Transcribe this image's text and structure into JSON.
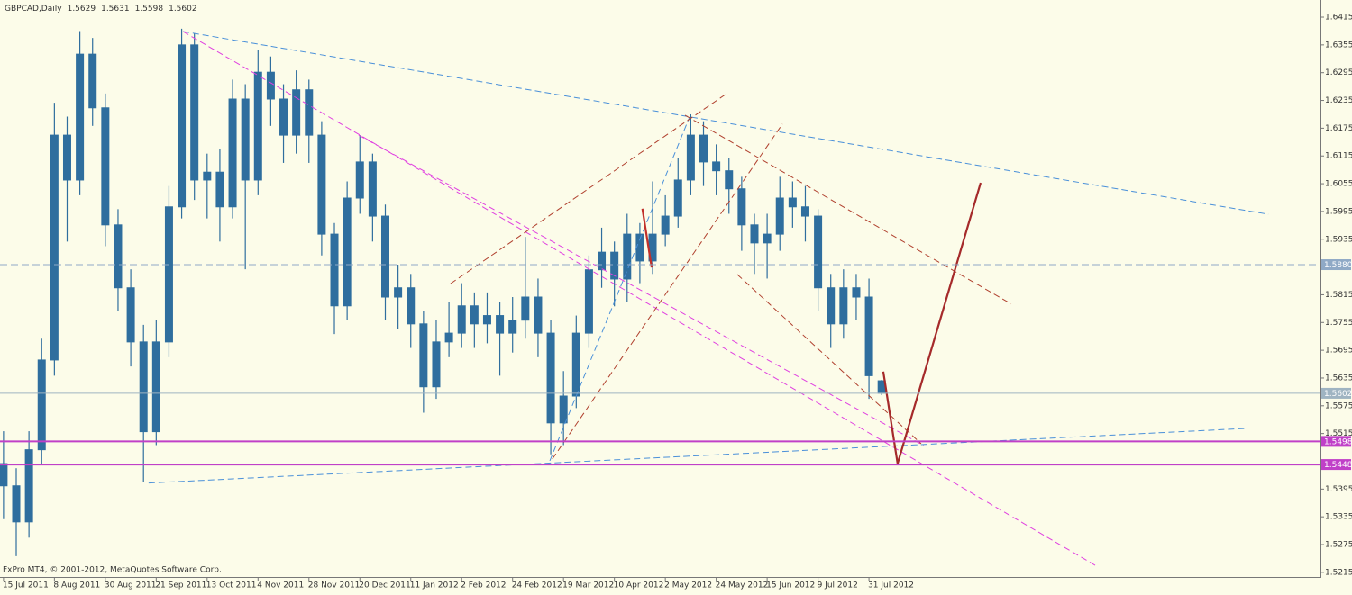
{
  "chart_data": {
    "type": "candlestick",
    "title": "GBPCAD,Daily",
    "footer": "FxPro MT4, © 2001-2012, MetaQuotes Software Corp.",
    "series": [
      {
        "color": "#2f6e9e",
        "x": [
          0,
          4,
          8,
          12,
          16,
          20,
          24,
          28,
          32,
          36,
          40,
          44,
          48,
          52,
          56,
          60,
          64,
          68,
          72,
          76,
          80,
          84,
          88,
          92,
          96,
          100,
          104,
          108,
          112,
          116,
          120,
          124,
          128,
          132,
          136,
          140,
          144,
          148,
          152,
          156,
          160,
          164,
          168,
          172,
          176,
          180,
          184,
          188,
          192,
          196,
          200,
          204,
          208,
          212,
          216,
          220,
          224,
          228,
          232,
          236,
          240,
          244,
          248,
          252,
          256,
          260,
          264,
          268,
          272,
          276
        ],
        "open": [
          1.545,
          1.5402,
          1.5324,
          1.548,
          1.5674,
          1.616,
          1.6063,
          1.6335,
          1.6219,
          1.5966,
          1.583,
          1.5713,
          1.5519,
          1.5713,
          1.6005,
          1.6355,
          1.6063,
          1.608,
          1.6005,
          1.6238,
          1.6063,
          1.6296,
          1.6238,
          1.616,
          1.6258,
          1.616,
          1.5946,
          1.5791,
          1.6024,
          1.6102,
          1.5985,
          1.581,
          1.583,
          1.5752,
          1.5616,
          1.5713,
          1.5732,
          1.5791,
          1.5752,
          1.577,
          1.5732,
          1.576,
          1.581,
          1.5732,
          1.5538,
          1.5596,
          1.5732,
          1.5869,
          1.5907,
          1.5849,
          1.5946,
          1.5888,
          1.5946,
          1.5985,
          1.6063,
          1.616,
          1.6102,
          1.6083,
          1.6044,
          1.5966,
          1.5927,
          1.5946,
          1.6024,
          1.6005,
          1.5985,
          1.583,
          1.5752,
          1.583,
          1.581,
          1.5629
        ],
        "high": [
          1.552,
          1.544,
          1.552,
          1.572,
          1.623,
          1.62,
          1.6385,
          1.637,
          1.625,
          1.6,
          1.587,
          1.575,
          1.576,
          1.605,
          1.639,
          1.638,
          1.612,
          1.613,
          1.628,
          1.627,
          1.6345,
          1.633,
          1.627,
          1.63,
          1.628,
          1.619,
          1.597,
          1.606,
          1.616,
          1.612,
          1.601,
          1.588,
          1.586,
          1.578,
          1.576,
          1.58,
          1.584,
          1.582,
          1.582,
          1.58,
          1.581,
          1.594,
          1.585,
          1.576,
          1.565,
          1.577,
          1.59,
          1.596,
          1.593,
          1.599,
          1.597,
          1.606,
          1.603,
          1.611,
          1.6205,
          1.619,
          1.614,
          1.611,
          1.607,
          1.599,
          1.599,
          1.607,
          1.606,
          1.605,
          1.6,
          1.586,
          1.587,
          1.586,
          1.585,
          1.5631
        ],
        "low": [
          1.533,
          1.525,
          1.529,
          1.545,
          1.564,
          1.593,
          1.603,
          1.618,
          1.592,
          1.578,
          1.566,
          1.541,
          1.549,
          1.568,
          1.598,
          1.602,
          1.598,
          1.593,
          1.598,
          1.587,
          1.603,
          1.618,
          1.61,
          1.612,
          1.61,
          1.59,
          1.573,
          1.576,
          1.599,
          1.593,
          1.576,
          1.574,
          1.57,
          1.556,
          1.559,
          1.568,
          1.57,
          1.57,
          1.571,
          1.564,
          1.569,
          1.572,
          1.568,
          1.547,
          1.549,
          1.557,
          1.57,
          1.583,
          1.579,
          1.58,
          1.584,
          1.586,
          1.592,
          1.596,
          1.603,
          1.605,
          1.603,
          1.599,
          1.591,
          1.586,
          1.585,
          1.591,
          1.596,
          1.593,
          1.578,
          1.57,
          1.572,
          1.576,
          1.559,
          1.5598
        ],
        "close": [
          1.5402,
          1.5324,
          1.548,
          1.5674,
          1.616,
          1.6063,
          1.6335,
          1.6219,
          1.5966,
          1.583,
          1.5713,
          1.5519,
          1.5713,
          1.6005,
          1.6355,
          1.6063,
          1.608,
          1.6005,
          1.6238,
          1.6063,
          1.6296,
          1.6238,
          1.616,
          1.6258,
          1.616,
          1.5946,
          1.5791,
          1.6024,
          1.6102,
          1.5985,
          1.581,
          1.583,
          1.5752,
          1.5616,
          1.5713,
          1.5732,
          1.5791,
          1.5752,
          1.577,
          1.5732,
          1.576,
          1.581,
          1.5732,
          1.5538,
          1.5596,
          1.5732,
          1.5869,
          1.5907,
          1.5849,
          1.5946,
          1.5888,
          1.5946,
          1.5985,
          1.6063,
          1.616,
          1.6102,
          1.6083,
          1.6044,
          1.5966,
          1.5927,
          1.5946,
          1.6024,
          1.6005,
          1.5985,
          1.583,
          1.5752,
          1.583,
          1.581,
          1.564,
          1.5602
        ]
      }
    ],
    "xlim": [
      -1.1,
      413.9
    ],
    "xticks": [
      {
        "value": 0,
        "label": "15 Jul 2011"
      },
      {
        "value": 16,
        "label": "8 Aug 2011"
      },
      {
        "value": 32,
        "label": "30 Aug 2011"
      },
      {
        "value": 48,
        "label": "21 Sep 2011"
      },
      {
        "value": 64,
        "label": "13 Oct 2011"
      },
      {
        "value": 80,
        "label": "4 Nov 2011"
      },
      {
        "value": 96,
        "label": "28 Nov 2011"
      },
      {
        "value": 112,
        "label": "20 Dec 2011"
      },
      {
        "value": 128,
        "label": "11 Jan 2012"
      },
      {
        "value": 144,
        "label": "2 Feb 2012"
      },
      {
        "value": 160,
        "label": "24 Feb 2012"
      },
      {
        "value": 176,
        "label": "19 Mar 2012"
      },
      {
        "value": 192,
        "label": "10 Apr 2012"
      },
      {
        "value": 208,
        "label": "2 May 2012"
      },
      {
        "value": 224,
        "label": "24 May 2012"
      },
      {
        "value": 240,
        "label": "15 Jun 2012"
      },
      {
        "value": 256,
        "label": "9 Jul 2012"
      },
      {
        "value": 272,
        "label": "31 Jul 2012"
      }
    ],
    "ylim": [
      1.5205,
      1.6452
    ],
    "yticks": [
      1.6415,
      1.6355,
      1.6295,
      1.6235,
      1.6175,
      1.6115,
      1.6055,
      1.5995,
      1.5935,
      1.5815,
      1.5755,
      1.5695,
      1.5635,
      1.5575,
      1.5515,
      1.5395,
      1.5335,
      1.5275,
      1.5215
    ],
    "hlines": [
      {
        "value": 1.588,
        "label": "1.5880",
        "color": "#8fa9c6",
        "dash": true
      },
      {
        "value": 1.5602,
        "color": "#9fb4c2",
        "dash": false
      },
      {
        "value": 1.5498,
        "color": "#c040c8",
        "dash": false
      },
      {
        "value": 1.5448,
        "color": "#c040c8",
        "dash": false
      }
    ],
    "drawings": [
      {
        "color": "#4a90d9",
        "dash": true,
        "x": [
          56.4,
          397.5
        ],
        "y": [
          1.6384,
          1.5989
        ]
      },
      {
        "color": "#4a90d9",
        "dash": true,
        "x": [
          45.6,
          390.4
        ],
        "y": [
          1.5408,
          1.5526
        ]
      },
      {
        "color": "#4a90d9",
        "dash": true,
        "x": [
          171.7,
          215.6
        ],
        "y": [
          1.5456,
          1.6199
        ]
      },
      {
        "color": "#e040e0",
        "dash": true,
        "x": [
          56.4,
          343.9
        ],
        "y": [
          1.6384,
          1.5227
        ]
      },
      {
        "color": "#e040e0",
        "dash": true,
        "x": [
          111.6,
          289.2
        ],
        "y": [
          1.616,
          1.5489
        ]
      },
      {
        "color": "#b0402e",
        "dash": true,
        "x": [
          140.5,
          226.9
        ],
        "y": [
          1.5839,
          1.6248
        ]
      },
      {
        "color": "#b0402e",
        "dash": true,
        "x": [
          172.5,
          244.8
        ],
        "y": [
          1.546,
          1.6184
        ]
      },
      {
        "color": "#b0402e",
        "dash": true,
        "x": [
          214.2,
          316.7
        ],
        "y": [
          1.6203,
          1.5795
        ]
      },
      {
        "color": "#b0402e",
        "dash": true,
        "x": [
          230.6,
          288.4
        ],
        "y": [
          1.5859,
          1.5493
        ]
      },
      {
        "color": "#a52a2a",
        "dash": false,
        "x": [
          276.5,
          281,
          307.1
        ],
        "y": [
          1.5649,
          1.545,
          1.6057
        ]
      },
      {
        "color": "#c0302a",
        "dash": false,
        "x": [
          200.8,
          203.7
        ],
        "y": [
          1.6001,
          1.5874
        ]
      }
    ]
  }
}
